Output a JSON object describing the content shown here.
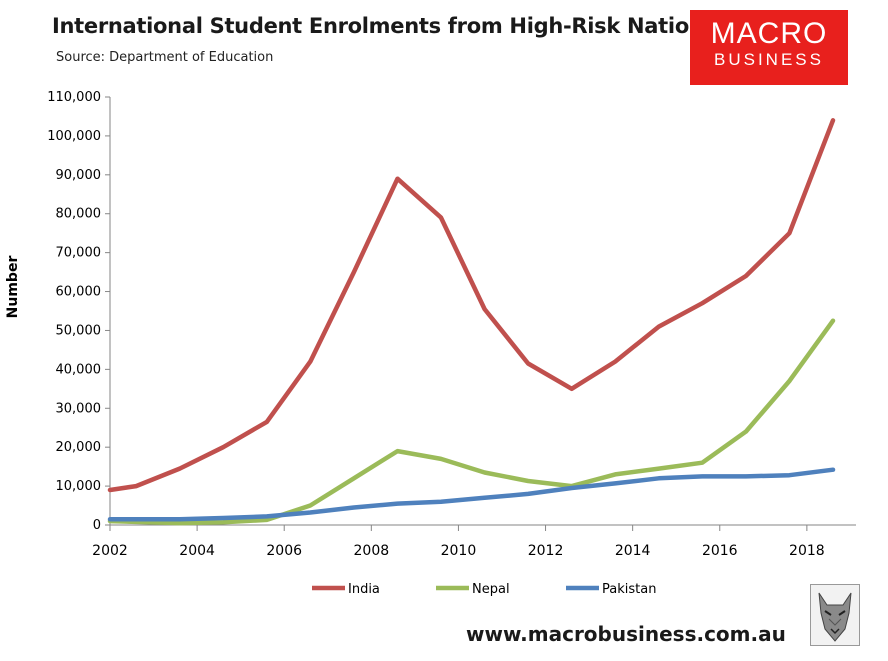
{
  "header": {
    "title": "International Student Enrolments from High-Risk Nations",
    "source": "Source: Department of Education"
  },
  "brand": {
    "line1": "MACRO",
    "line2": "BUSINESS",
    "color": "#e8201d",
    "website": "www.macrobusiness.com.au",
    "mascot_icon": "wolf-logo-icon"
  },
  "chart_data": {
    "type": "line",
    "title": "International Student Enrolments from High-Risk Nations",
    "subtitle": "Source: Department of Education",
    "xlabel": "",
    "ylabel": "Number",
    "xlim": [
      2002,
      2019
    ],
    "ylim": [
      0,
      110000
    ],
    "xticks": [
      2002,
      2004,
      2006,
      2008,
      2010,
      2012,
      2014,
      2016,
      2018
    ],
    "yticks": [
      0,
      10000,
      20000,
      30000,
      40000,
      50000,
      60000,
      70000,
      80000,
      90000,
      100000,
      110000
    ],
    "ytick_labels": [
      "0",
      "10,000",
      "20,000",
      "30,000",
      "40,000",
      "50,000",
      "60,000",
      "70,000",
      "80,000",
      "90,000",
      "100,000",
      "110,000"
    ],
    "grid": false,
    "legend": "bottom",
    "x": [
      2002,
      2002.6,
      2003.6,
      2004.6,
      2005.6,
      2006.6,
      2007.6,
      2008.6,
      2009.6,
      2010.6,
      2011.6,
      2012.6,
      2013.6,
      2014.6,
      2015.6,
      2016.6,
      2017.6,
      2018.6
    ],
    "series": [
      {
        "name": "India",
        "color": "#c0504d",
        "values": [
          9000,
          10000,
          14500,
          20000,
          26500,
          42000,
          65000,
          89000,
          79000,
          55500,
          41500,
          35000,
          42000,
          51000,
          57000,
          64000,
          75000,
          104000
        ]
      },
      {
        "name": "Nepal",
        "color": "#9bbb59",
        "values": [
          1000,
          800,
          500,
          700,
          1300,
          5000,
          12000,
          19000,
          17000,
          13500,
          11300,
          10000,
          13000,
          14500,
          16000,
          24000,
          37000,
          52500
        ]
      },
      {
        "name": "Pakistan",
        "color": "#4f81bd",
        "values": [
          1500,
          1500,
          1500,
          1800,
          2200,
          3200,
          4500,
          5500,
          6000,
          7000,
          8000,
          9500,
          10700,
          12000,
          12500,
          12500,
          12800,
          14200
        ]
      }
    ]
  }
}
